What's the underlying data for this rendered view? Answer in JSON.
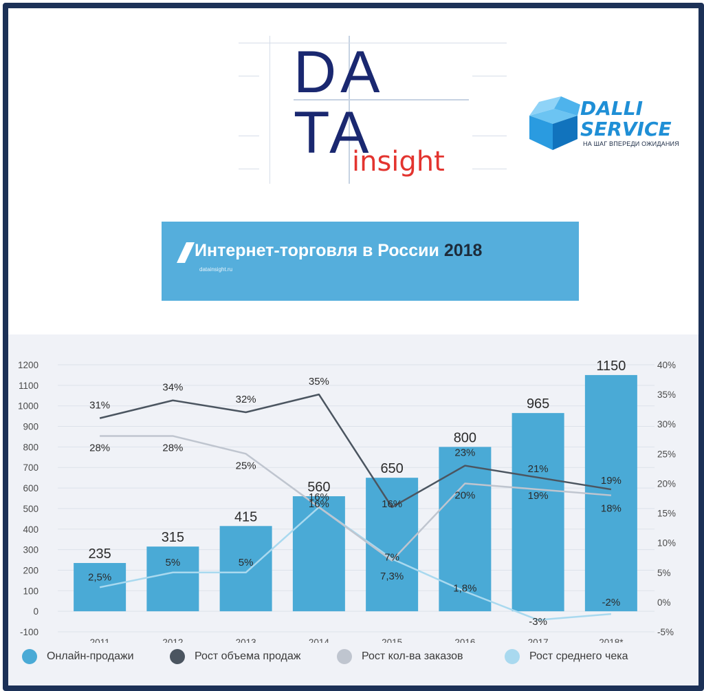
{
  "logos": {
    "datainsight": {
      "row1": "DA",
      "row2": "TA",
      "word": "insight"
    },
    "dalli": {
      "line1": "DALLI",
      "line2": "SERVICE",
      "tagline": "НА ШАГ ВПЕРЕДИ ОЖИДАНИЯ"
    }
  },
  "banner": {
    "title": "Интернет-торговля в России",
    "year": "2018",
    "url": "datainsight.ru"
  },
  "colors": {
    "bars": "#4aaad6",
    "sales_growth": "#4b5560",
    "orders_growth": "#bfc5cf",
    "check_growth": "#a9d9ef",
    "background": "#f0f2f7",
    "frame": "#1c3157"
  },
  "chart_data": {
    "type": "bar",
    "categories": [
      "2011",
      "2012",
      "2013",
      "2014",
      "2015",
      "2016",
      "2017",
      "2018*"
    ],
    "y_left": {
      "ticks": [
        "-100",
        "0",
        "100",
        "200",
        "300",
        "400",
        "500",
        "600",
        "700",
        "800",
        "900",
        "1000",
        "1100",
        "1200"
      ],
      "ylim": [
        -100,
        1200
      ]
    },
    "y_right": {
      "ticks": [
        "-5%",
        "0%",
        "5%",
        "10%",
        "15%",
        "20%",
        "25%",
        "30%",
        "35%",
        "40%"
      ],
      "ylim": [
        -5,
        40
      ]
    },
    "grid": true,
    "legend_position": "bottom",
    "series": [
      {
        "name": "Онлайн-продажи",
        "kind": "bar",
        "axis": "left",
        "color": "#4aaad6",
        "values": [
          235,
          315,
          415,
          560,
          650,
          800,
          965,
          1150
        ],
        "labels": [
          "235",
          "315",
          "415",
          "560",
          "650",
          "800",
          "965",
          "1150"
        ]
      },
      {
        "name": "Рост объема продаж",
        "kind": "line",
        "axis": "right",
        "color": "#4b5560",
        "values": [
          31,
          34,
          32,
          35,
          16,
          23,
          21,
          19
        ],
        "labels": [
          "31%",
          "34%",
          "32%",
          "35%",
          "16%",
          "23%",
          "21%",
          "19%"
        ]
      },
      {
        "name": "Рост кол-ва заказов",
        "kind": "line",
        "axis": "right",
        "color": "#bfc5cf",
        "values": [
          28,
          28,
          25,
          16,
          7,
          20,
          19,
          18
        ],
        "labels": [
          "28%",
          "28%",
          "25%",
          "16%",
          "7%",
          "20%",
          "19%",
          "18%"
        ]
      },
      {
        "name": "Рост среднего чека",
        "kind": "line",
        "axis": "right",
        "color": "#a9d9ef",
        "values": [
          2.5,
          5,
          5,
          16,
          7.3,
          1.8,
          -3,
          -2
        ],
        "labels": [
          "2,5%",
          "5%",
          "5%",
          "16%",
          "7,3%",
          "1,8%",
          "-3%",
          "-2%"
        ]
      }
    ]
  }
}
